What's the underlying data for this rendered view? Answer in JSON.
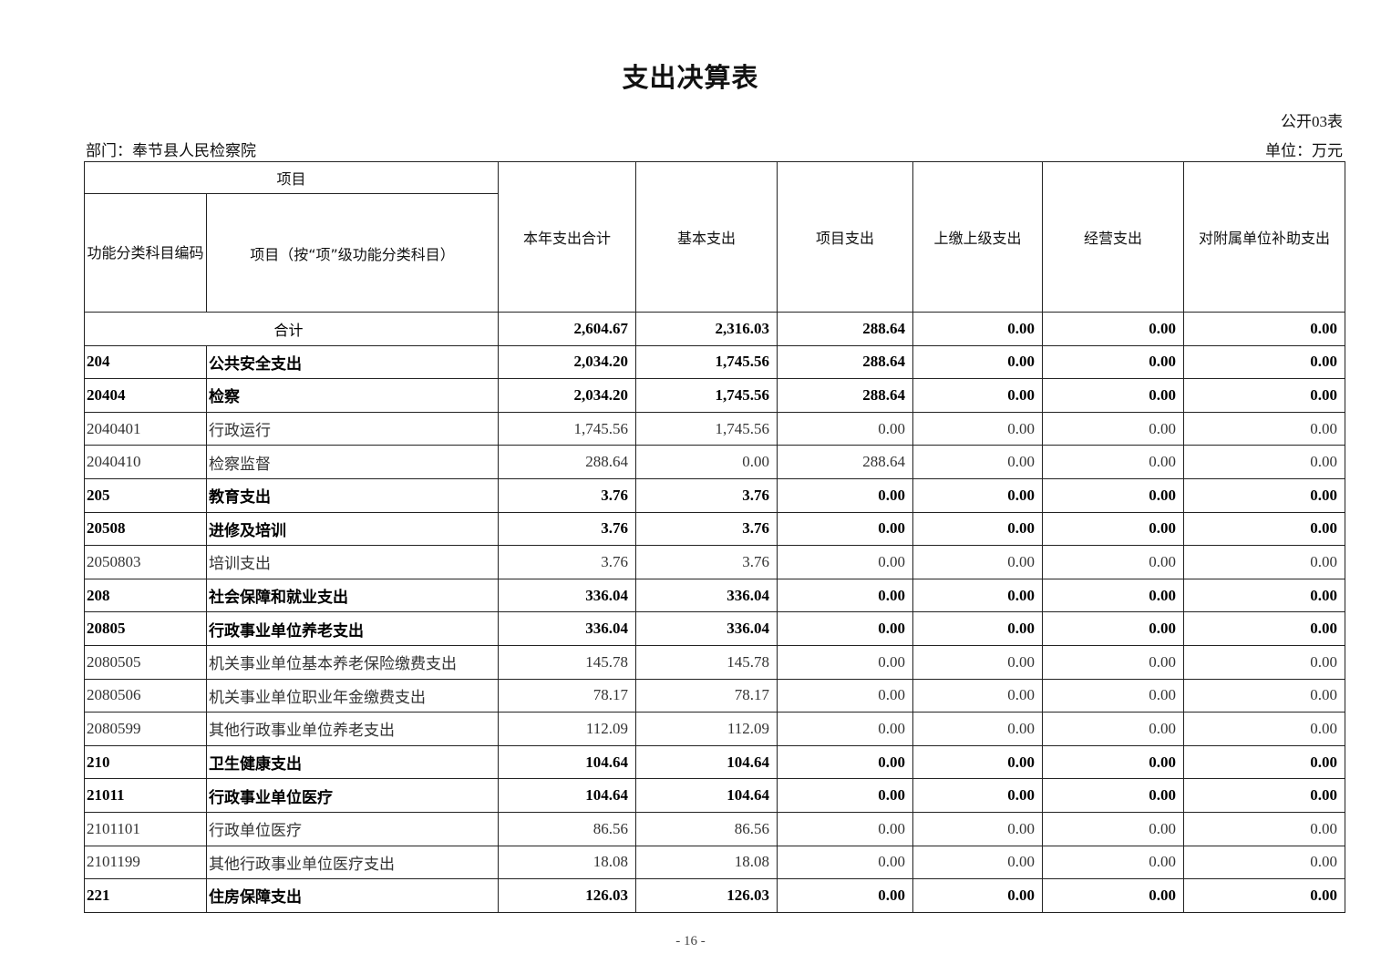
{
  "title": "支出决算表",
  "table_no": "公开03表",
  "department": "部门：奉节县人民检察院",
  "unit": "单位：万元",
  "headers": {
    "item_group": "项目",
    "code": "功能分类科目编码",
    "name": "项目（按“项”级功能分类科目）",
    "columns": [
      "本年支出合计",
      "基本支出",
      "项目支出",
      "上缴上级支出",
      "经营支出",
      "对附属单位补助支出"
    ]
  },
  "total": {
    "label": "合计",
    "values": [
      "2,604.67",
      "2,316.03",
      "288.64",
      "0.00",
      "0.00",
      "0.00"
    ]
  },
  "rows": [
    {
      "code": "204",
      "name": "公共安全支出",
      "bold": true,
      "values": [
        "2,034.20",
        "1,745.56",
        "288.64",
        "0.00",
        "0.00",
        "0.00"
      ]
    },
    {
      "code": "20404",
      "name": "检察",
      "bold": true,
      "values": [
        "2,034.20",
        "1,745.56",
        "288.64",
        "0.00",
        "0.00",
        "0.00"
      ]
    },
    {
      "code": "2040401",
      "name": "行政运行",
      "bold": false,
      "values": [
        "1,745.56",
        "1,745.56",
        "0.00",
        "0.00",
        "0.00",
        "0.00"
      ]
    },
    {
      "code": "2040410",
      "name": "检察监督",
      "bold": false,
      "values": [
        "288.64",
        "0.00",
        "288.64",
        "0.00",
        "0.00",
        "0.00"
      ]
    },
    {
      "code": "205",
      "name": "教育支出",
      "bold": true,
      "values": [
        "3.76",
        "3.76",
        "0.00",
        "0.00",
        "0.00",
        "0.00"
      ]
    },
    {
      "code": "20508",
      "name": "进修及培训",
      "bold": true,
      "values": [
        "3.76",
        "3.76",
        "0.00",
        "0.00",
        "0.00",
        "0.00"
      ]
    },
    {
      "code": "2050803",
      "name": "培训支出",
      "bold": false,
      "values": [
        "3.76",
        "3.76",
        "0.00",
        "0.00",
        "0.00",
        "0.00"
      ]
    },
    {
      "code": "208",
      "name": "社会保障和就业支出",
      "bold": true,
      "values": [
        "336.04",
        "336.04",
        "0.00",
        "0.00",
        "0.00",
        "0.00"
      ]
    },
    {
      "code": "20805",
      "name": "行政事业单位养老支出",
      "bold": true,
      "values": [
        "336.04",
        "336.04",
        "0.00",
        "0.00",
        "0.00",
        "0.00"
      ]
    },
    {
      "code": "2080505",
      "name": "机关事业单位基本养老保险缴费支出",
      "bold": false,
      "values": [
        "145.78",
        "145.78",
        "0.00",
        "0.00",
        "0.00",
        "0.00"
      ]
    },
    {
      "code": "2080506",
      "name": "机关事业单位职业年金缴费支出",
      "bold": false,
      "values": [
        "78.17",
        "78.17",
        "0.00",
        "0.00",
        "0.00",
        "0.00"
      ]
    },
    {
      "code": "2080599",
      "name": "其他行政事业单位养老支出",
      "bold": false,
      "values": [
        "112.09",
        "112.09",
        "0.00",
        "0.00",
        "0.00",
        "0.00"
      ]
    },
    {
      "code": "210",
      "name": "卫生健康支出",
      "bold": true,
      "values": [
        "104.64",
        "104.64",
        "0.00",
        "0.00",
        "0.00",
        "0.00"
      ]
    },
    {
      "code": "21011",
      "name": "行政事业单位医疗",
      "bold": true,
      "values": [
        "104.64",
        "104.64",
        "0.00",
        "0.00",
        "0.00",
        "0.00"
      ]
    },
    {
      "code": "2101101",
      "name": "行政单位医疗",
      "bold": false,
      "values": [
        "86.56",
        "86.56",
        "0.00",
        "0.00",
        "0.00",
        "0.00"
      ]
    },
    {
      "code": "2101199",
      "name": "其他行政事业单位医疗支出",
      "bold": false,
      "values": [
        "18.08",
        "18.08",
        "0.00",
        "0.00",
        "0.00",
        "0.00"
      ]
    },
    {
      "code": "221",
      "name": "住房保障支出",
      "bold": true,
      "values": [
        "126.03",
        "126.03",
        "0.00",
        "0.00",
        "0.00",
        "0.00"
      ]
    }
  ],
  "page_number": "- 16 -"
}
